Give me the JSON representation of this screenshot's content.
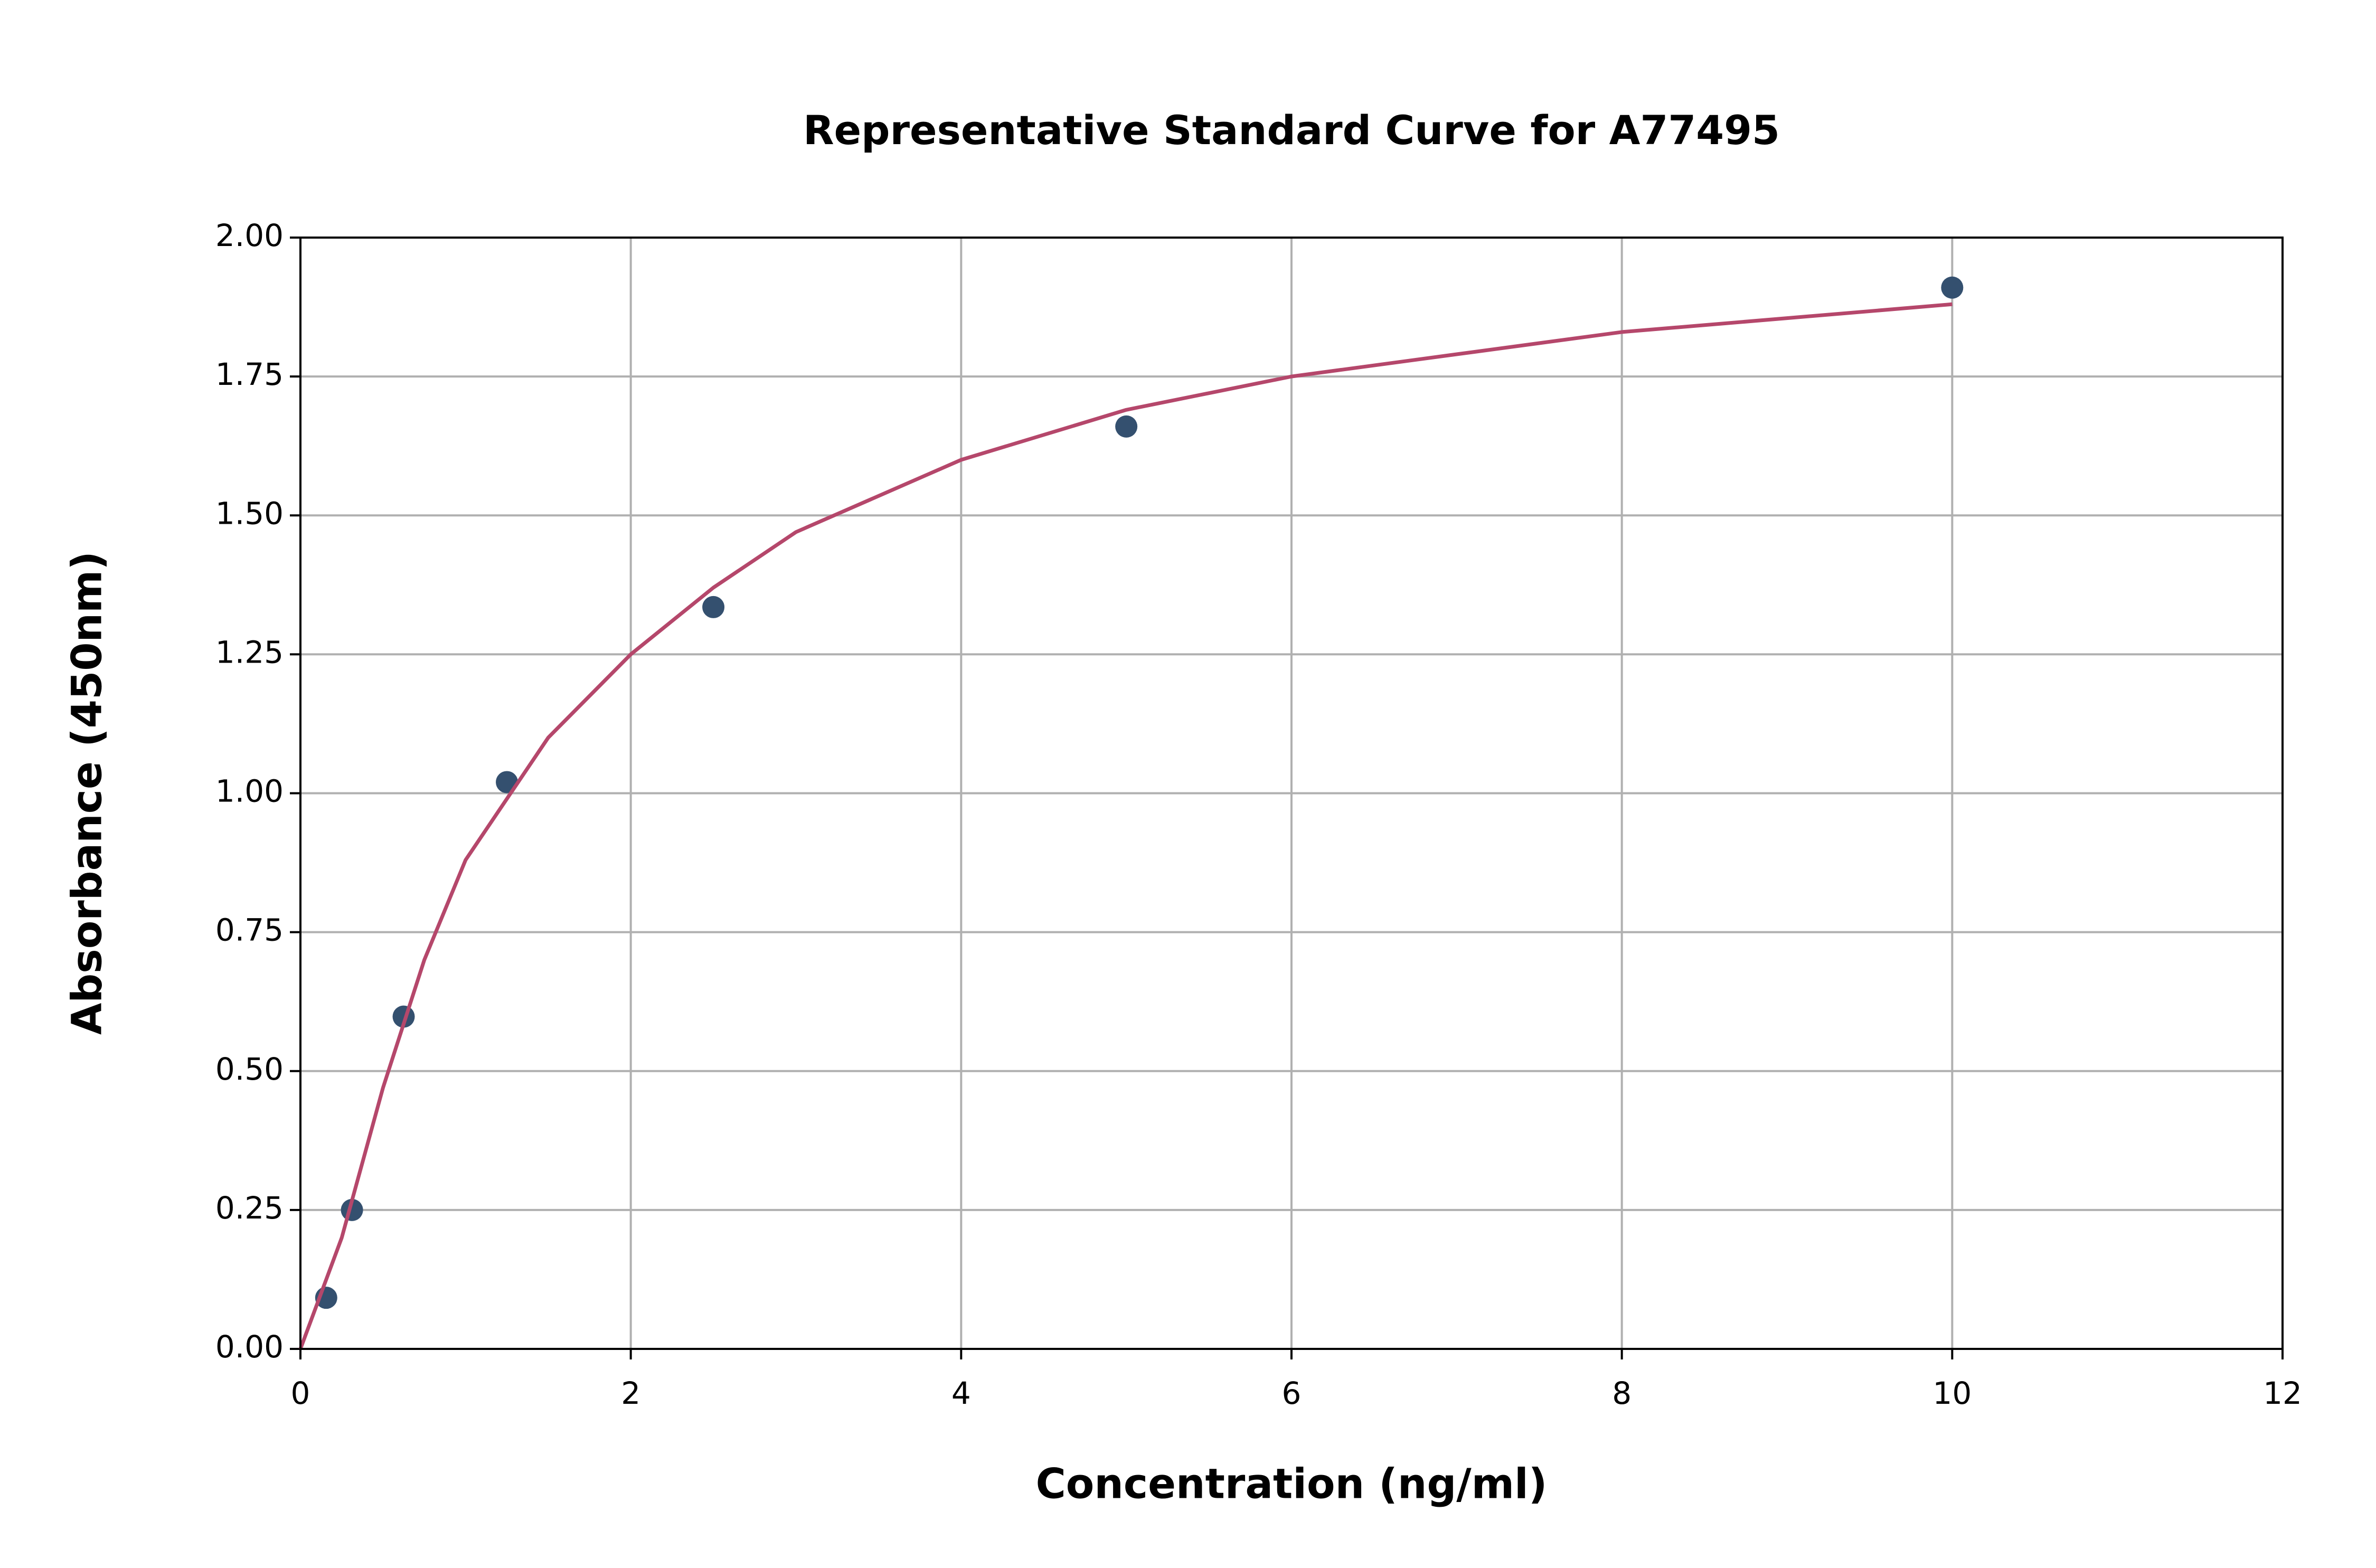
{
  "chart_data": {
    "type": "scatter",
    "title": "Representative Standard Curve for A77495",
    "xlabel": "Concentration (ng/ml)",
    "ylabel": "Absorbance (450nm)",
    "xlim": [
      0,
      12
    ],
    "ylim": [
      0,
      2
    ],
    "xticks": [
      0,
      2,
      4,
      6,
      8,
      10,
      12
    ],
    "yticks": [
      {
        "value": 0,
        "label": "0.00"
      },
      {
        "value": 0.25,
        "label": "0.25"
      },
      {
        "value": 0.5,
        "label": "0.50"
      },
      {
        "value": 0.75,
        "label": "0.75"
      },
      {
        "value": 1,
        "label": "1.00"
      },
      {
        "value": 1.25,
        "label": "1.25"
      },
      {
        "value": 1.5,
        "label": "1.50"
      },
      {
        "value": 1.75,
        "label": "1.75"
      },
      {
        "value": 2,
        "label": "2.00"
      }
    ],
    "grid": true,
    "series": [
      {
        "type": "scatter",
        "color": "#34506f",
        "x": [
          0.156,
          0.312,
          0.625,
          1.25,
          2.5,
          5,
          10
        ],
        "values": [
          0.092,
          0.25,
          0.598,
          1.02,
          1.335,
          1.66,
          1.91
        ]
      },
      {
        "type": "line",
        "color": "#b5476b",
        "x": [
          0,
          0.25,
          0.5,
          0.75,
          1,
          1.5,
          2,
          2.5,
          3,
          4,
          5,
          6,
          7,
          8,
          9,
          10
        ],
        "values": [
          0,
          0.2,
          0.47,
          0.7,
          0.88,
          1.1,
          1.25,
          1.37,
          1.47,
          1.6,
          1.69,
          1.75,
          1.79,
          1.83,
          1.855,
          1.88
        ]
      }
    ]
  }
}
